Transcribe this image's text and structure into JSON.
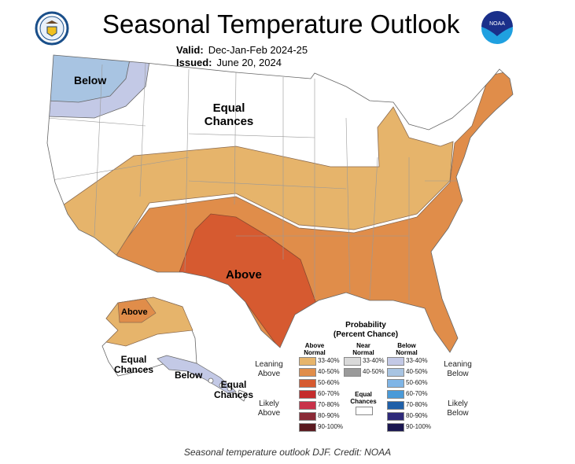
{
  "header": {
    "title": "Seasonal Temperature Outlook",
    "valid_label": "Valid:",
    "valid_value": "Dec-Jan-Feb 2024-25",
    "issued_label": "Issued:",
    "issued_value": "June 20, 2024"
  },
  "logos": {
    "left": "doc-seal-logo",
    "right": "NOAA",
    "right_icon": "noaa-logo"
  },
  "map_labels": {
    "below_nw": "Below",
    "equal_chances": "Equal Chances",
    "above": "Above",
    "ak_above": "Above",
    "ak_equal": "Equal Chances",
    "ak_below": "Below",
    "hi_equal": "Equal Chances"
  },
  "legend": {
    "title": "Probability",
    "subtitle": "(Percent Chance)",
    "col_above": "Above Normal",
    "col_near": "Near Normal",
    "col_below": "Below Normal",
    "leaning_above": "Leaning Above",
    "likely_above": "Likely Above",
    "leaning_below": "Leaning Below",
    "likely_below": "Likely Below",
    "equal_chances": "Equal Chances",
    "above": [
      {
        "range": "33-40%",
        "color": "#e6b46b"
      },
      {
        "range": "40-50%",
        "color": "#e08d4a"
      },
      {
        "range": "50-60%",
        "color": "#d65a30"
      },
      {
        "range": "60-70%",
        "color": "#c42c2c"
      },
      {
        "range": "70-80%",
        "color": "#c8324a"
      },
      {
        "range": "80-90%",
        "color": "#8a2a36"
      },
      {
        "range": "90-100%",
        "color": "#5a1a20"
      }
    ],
    "near": [
      {
        "range": "33-40%",
        "color": "#d9d9d9"
      },
      {
        "range": "40-50%",
        "color": "#9a9a9a"
      }
    ],
    "below": [
      {
        "range": "33-40%",
        "color": "#c3c9e6"
      },
      {
        "range": "40-50%",
        "color": "#a8c4e2"
      },
      {
        "range": "50-60%",
        "color": "#7fb5e6"
      },
      {
        "range": "60-70%",
        "color": "#4a9ad8"
      },
      {
        "range": "70-80%",
        "color": "#1f5fa8"
      },
      {
        "range": "80-90%",
        "color": "#2e2a7a"
      },
      {
        "range": "90-100%",
        "color": "#1a1750"
      }
    ]
  },
  "caption": "Seasonal temperature outlook DJF. Credit: NOAA"
}
